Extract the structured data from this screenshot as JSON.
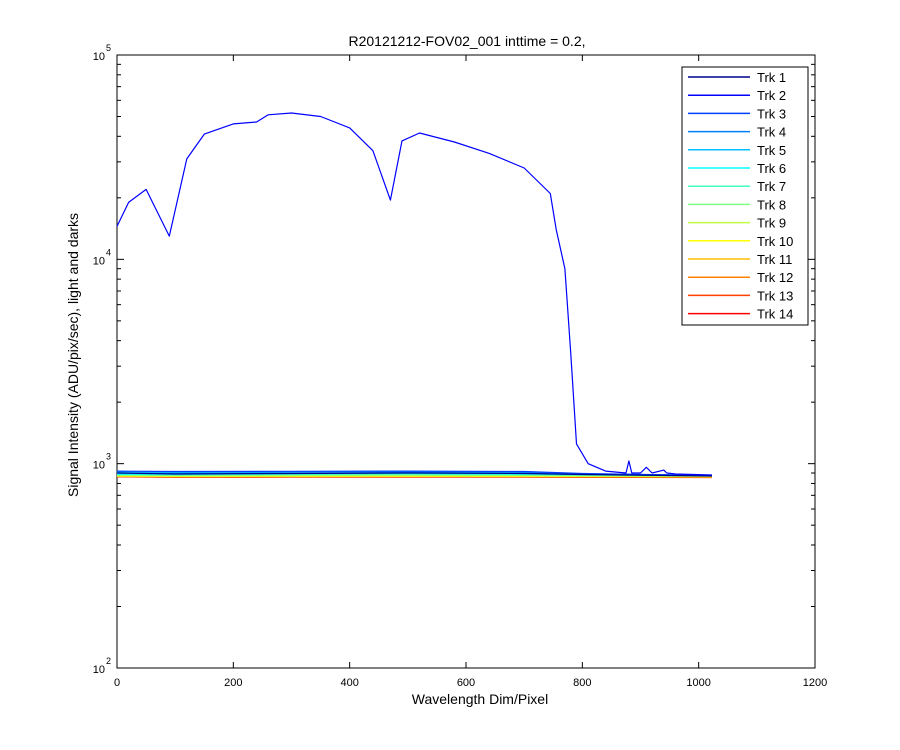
{
  "chart_data": {
    "type": "line",
    "title": "R20121212-FOV02_001 inttime = 0.2,",
    "xlabel": "Wavelength Dim/Pixel",
    "ylabel": "Signal Intensity (ADU/pix/sec), light and darks",
    "xlim": [
      0,
      1200
    ],
    "ylim": [
      100,
      100000
    ],
    "y_scale": "log",
    "grid": false,
    "legend_position": "top-right",
    "x_ticks": [
      "0",
      "200",
      "400",
      "600",
      "800",
      "1000",
      "1200"
    ],
    "y_ticks": [
      {
        "base": "10",
        "exp": "2",
        "value": 100
      },
      {
        "base": "10",
        "exp": "3",
        "value": 1000
      },
      {
        "base": "10",
        "exp": "4",
        "value": 10000
      },
      {
        "base": "10",
        "exp": "5",
        "value": 100000
      }
    ],
    "series": [
      {
        "name": "Trk 1",
        "color": "#00008f",
        "x": [
          0,
          100,
          300,
          500,
          700,
          800,
          1023
        ],
        "y": [
          900,
          890,
          895,
          900,
          895,
          885,
          870
        ]
      },
      {
        "name": "Trk 2",
        "color": "#0000ff",
        "x": [
          0,
          20,
          50,
          90,
          120,
          150,
          200,
          240,
          260,
          300,
          350,
          400,
          440,
          470,
          490,
          520,
          580,
          640,
          700,
          745,
          755,
          770,
          780,
          790,
          810,
          840,
          875,
          880,
          885,
          900,
          910,
          920,
          940,
          945,
          960,
          1023
        ],
        "y": [
          14500,
          19000,
          22000,
          13000,
          31000,
          41000,
          46000,
          47000,
          51000,
          52000,
          50000,
          44000,
          34000,
          19500,
          38000,
          41500,
          37500,
          33000,
          28000,
          21000,
          14000,
          9000,
          3500,
          1250,
          1000,
          920,
          900,
          1030,
          900,
          900,
          960,
          900,
          930,
          900,
          890,
          880
        ]
      },
      {
        "name": "Trk 3",
        "color": "#0040ff",
        "x": [
          0,
          100,
          300,
          500,
          700,
          800,
          1023
        ],
        "y": [
          920,
          915,
          918,
          920,
          915,
          895,
          875
        ]
      },
      {
        "name": "Trk 4",
        "color": "#0080ff",
        "x": [
          0,
          100,
          300,
          500,
          700,
          800,
          1023
        ],
        "y": [
          900,
          895,
          900,
          905,
          900,
          890,
          878
        ]
      },
      {
        "name": "Trk 5",
        "color": "#00bfff",
        "x": [
          0,
          100,
          300,
          500,
          700,
          800,
          1023
        ],
        "y": [
          910,
          905,
          912,
          915,
          905,
          892,
          876
        ]
      },
      {
        "name": "Trk 6",
        "color": "#00ffff",
        "x": [
          0,
          100,
          300,
          500,
          700,
          800,
          1023
        ],
        "y": [
          890,
          888,
          892,
          895,
          890,
          885,
          875
        ]
      },
      {
        "name": "Trk 7",
        "color": "#40ffbf",
        "x": [
          0,
          100,
          300,
          500,
          700,
          800,
          1023
        ],
        "y": [
          885,
          882,
          888,
          890,
          885,
          880,
          872
        ]
      },
      {
        "name": "Trk 8",
        "color": "#80ff80",
        "x": [
          0,
          100,
          300,
          500,
          700,
          800,
          1023
        ],
        "y": [
          880,
          876,
          880,
          882,
          878,
          875,
          870
        ]
      },
      {
        "name": "Trk 9",
        "color": "#bfff40",
        "x": [
          0,
          100,
          300,
          500,
          700,
          800,
          1023
        ],
        "y": [
          875,
          870,
          872,
          874,
          872,
          870,
          866
        ]
      },
      {
        "name": "Trk 10",
        "color": "#ffff00",
        "x": [
          0,
          100,
          300,
          500,
          700,
          800,
          1023
        ],
        "y": [
          870,
          866,
          868,
          868,
          867,
          866,
          864
        ]
      },
      {
        "name": "Trk 11",
        "color": "#ffbf00",
        "x": [
          0,
          100,
          300,
          500,
          700,
          800,
          1023
        ],
        "y": [
          868,
          864,
          865,
          866,
          865,
          864,
          862
        ]
      },
      {
        "name": "Trk 12",
        "color": "#ff8000",
        "x": [
          0,
          100,
          300,
          500,
          700,
          800,
          1023
        ],
        "y": [
          866,
          862,
          863,
          864,
          863,
          862,
          860
        ]
      },
      {
        "name": "Trk 13",
        "color": "#ff4000",
        "x": [
          0,
          100,
          300,
          500,
          700,
          800,
          1023
        ],
        "y": [
          864,
          860,
          861,
          862,
          861,
          860,
          858
        ]
      },
      {
        "name": "Trk 14",
        "color": "#ff0000",
        "x": [
          0,
          100,
          300,
          500,
          700,
          800,
          1023
        ],
        "y": [
          862,
          858,
          859,
          860,
          859,
          858,
          856
        ]
      }
    ]
  }
}
